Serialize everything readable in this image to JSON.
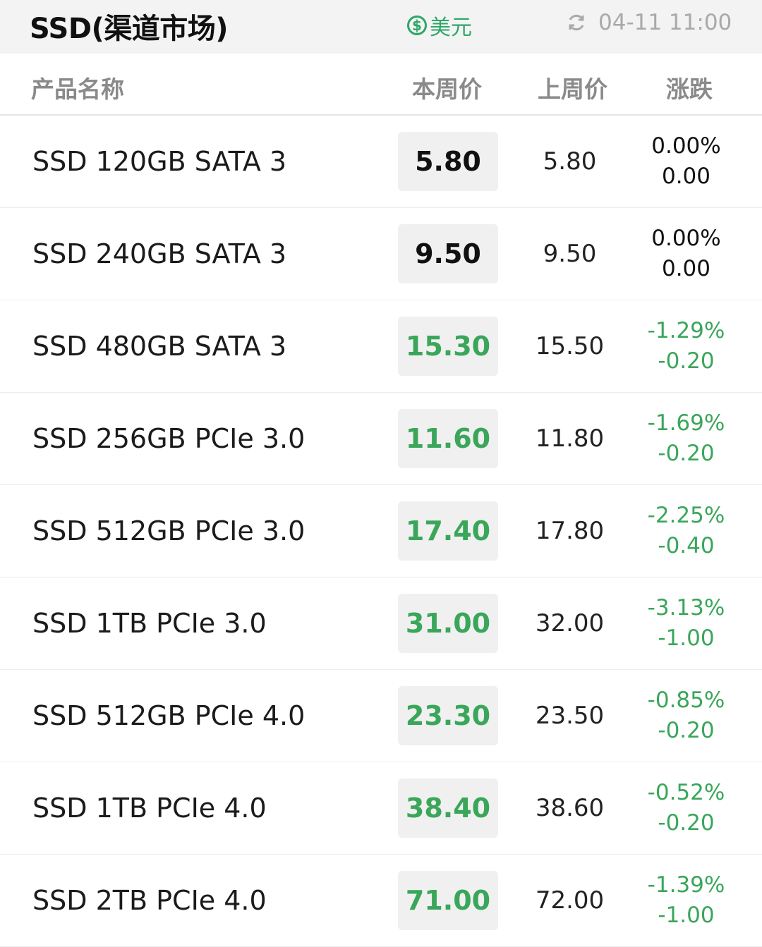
{
  "header": {
    "title": "SSD(渠道市场)",
    "currency_icon": "$",
    "currency_label": "美元",
    "updated_time": "04-11 11:00"
  },
  "columns": {
    "name": "产品名称",
    "current": "本周价",
    "previous": "上周价",
    "change": "涨跌"
  },
  "colors": {
    "down": "#3aa65a",
    "neutral": "#111111",
    "accent": "#2ea66a"
  },
  "rows": [
    {
      "name": "SSD 120GB SATA 3",
      "current": "5.80",
      "previous": "5.80",
      "change_pct": "0.00%",
      "change_abs": "0.00",
      "trend": "neutral"
    },
    {
      "name": "SSD 240GB SATA 3",
      "current": "9.50",
      "previous": "9.50",
      "change_pct": "0.00%",
      "change_abs": "0.00",
      "trend": "neutral"
    },
    {
      "name": "SSD 480GB SATA 3",
      "current": "15.30",
      "previous": "15.50",
      "change_pct": "-1.29%",
      "change_abs": "-0.20",
      "trend": "down"
    },
    {
      "name": "SSD 256GB PCIe 3.0",
      "current": "11.60",
      "previous": "11.80",
      "change_pct": "-1.69%",
      "change_abs": "-0.20",
      "trend": "down"
    },
    {
      "name": "SSD 512GB PCIe 3.0",
      "current": "17.40",
      "previous": "17.80",
      "change_pct": "-2.25%",
      "change_abs": "-0.40",
      "trend": "down"
    },
    {
      "name": "SSD 1TB PCIe 3.0",
      "current": "31.00",
      "previous": "32.00",
      "change_pct": "-3.13%",
      "change_abs": "-1.00",
      "trend": "down"
    },
    {
      "name": "SSD 512GB PCIe 4.0",
      "current": "23.30",
      "previous": "23.50",
      "change_pct": "-0.85%",
      "change_abs": "-0.20",
      "trend": "down"
    },
    {
      "name": "SSD 1TB PCIe 4.0",
      "current": "38.40",
      "previous": "38.60",
      "change_pct": "-0.52%",
      "change_abs": "-0.20",
      "trend": "down"
    },
    {
      "name": "SSD 2TB PCIe 4.0",
      "current": "71.00",
      "previous": "72.00",
      "change_pct": "-1.39%",
      "change_abs": "-1.00",
      "trend": "down"
    }
  ]
}
